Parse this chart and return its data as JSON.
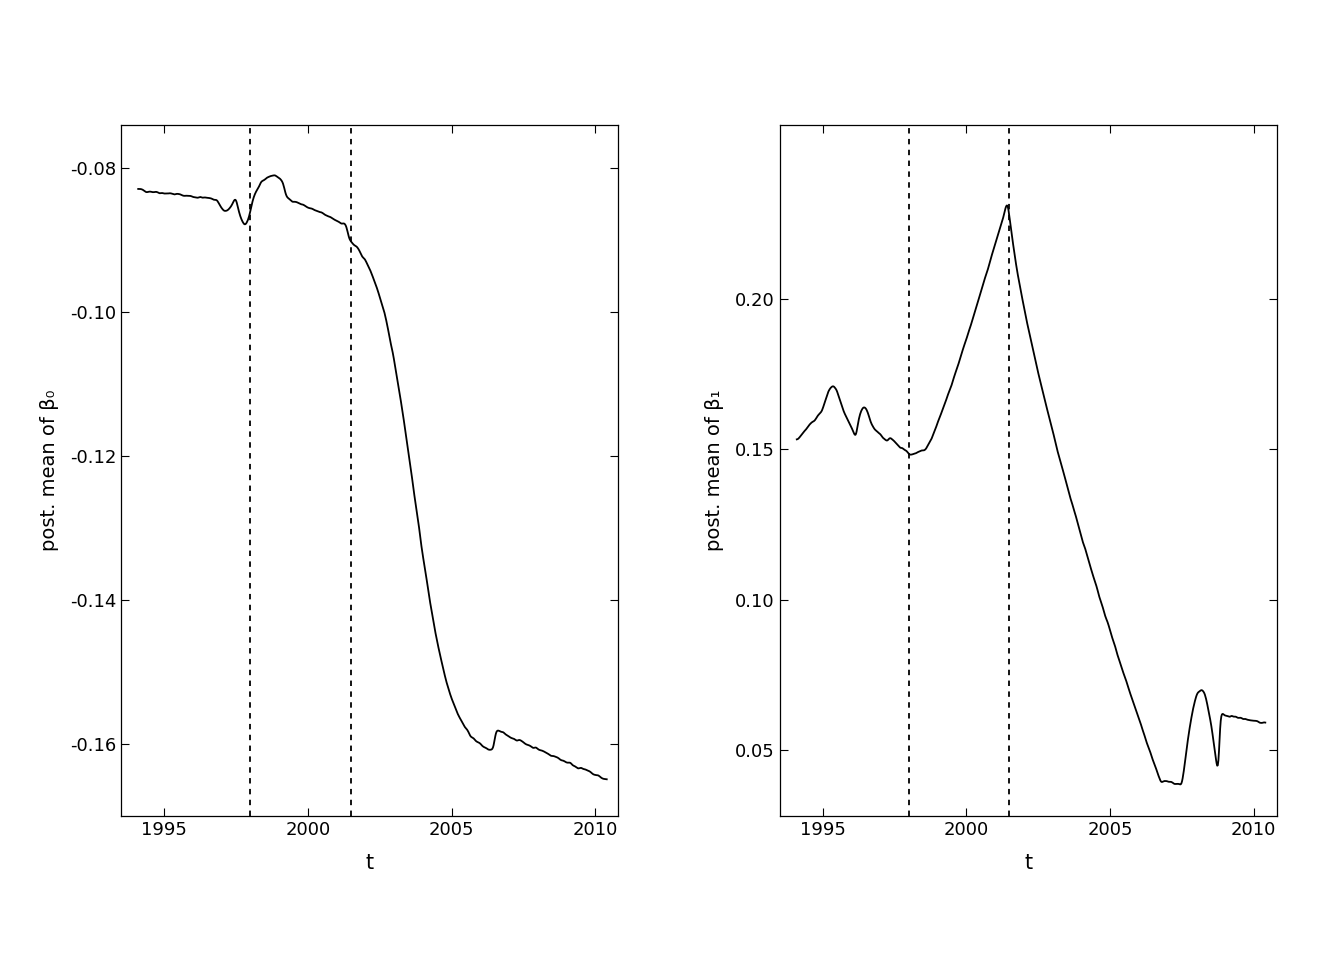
{
  "vline_x": [
    1998.0,
    2001.5
  ],
  "xlim": [
    1993.5,
    2010.8
  ],
  "left_ylim": [
    -0.17,
    -0.074
  ],
  "right_ylim": [
    0.028,
    0.258
  ],
  "left_yticks": [
    -0.16,
    -0.14,
    -0.12,
    -0.1,
    -0.08
  ],
  "right_yticks": [
    0.05,
    0.1,
    0.15,
    0.2
  ],
  "xticks": [
    1995,
    2000,
    2005,
    2010
  ],
  "left_ylabel": "post. mean of β₀",
  "right_ylabel": "post. mean of β₁",
  "xlabel": "t",
  "line_color": "#000000",
  "background_color": "#ffffff",
  "figsize": [
    13.44,
    9.6
  ],
  "dpi": 100
}
